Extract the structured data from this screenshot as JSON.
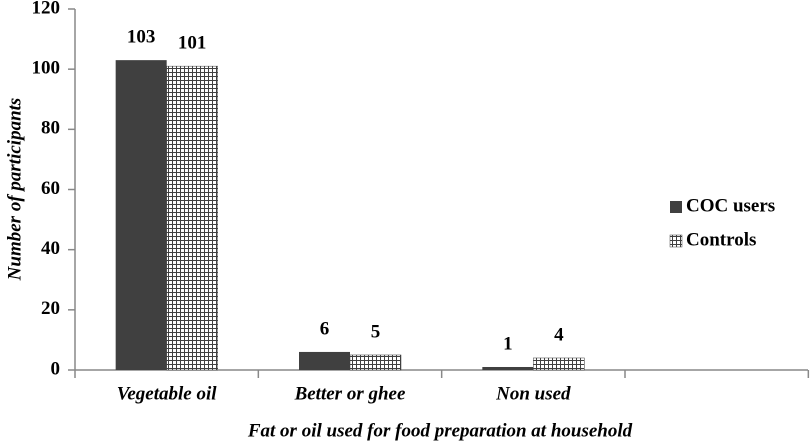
{
  "chart_data": {
    "type": "bar",
    "x_label": "Fat or oil used for food preparation at household",
    "y_label": "Number of participants",
    "categories": [
      "Vegetable oil",
      "Better or ghee",
      "Non used"
    ],
    "series": [
      {
        "name": "COC users",
        "color": "#404040",
        "pattern": "solid",
        "values": [
          103,
          6,
          1
        ]
      },
      {
        "name": "Controls",
        "color": "#404040",
        "pattern": "grid",
        "values": [
          101,
          5,
          4
        ]
      }
    ],
    "ylim": [
      0,
      120
    ],
    "yticks": [
      0,
      20,
      40,
      60,
      80,
      100,
      120
    ],
    "grid": false,
    "legend": "right"
  }
}
